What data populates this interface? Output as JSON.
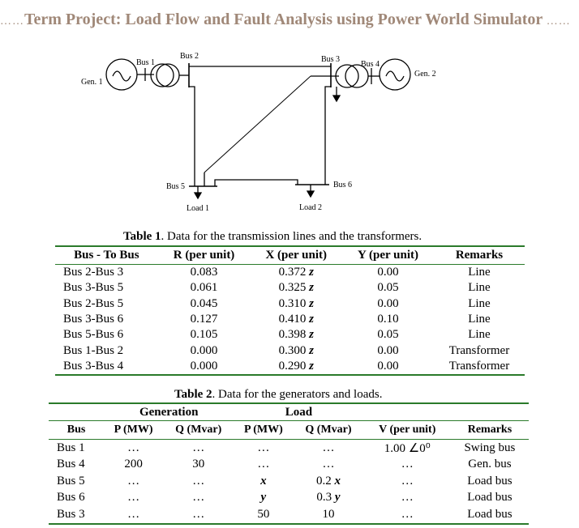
{
  "title": "Term Project: Load Flow and Fault Analysis using Power World Simulator",
  "title_color": "#a08878",
  "diagram": {
    "gen1": "Gen. 1",
    "gen2": "Gen. 2",
    "bus1": "Bus 1",
    "bus2": "Bus 2",
    "bus3": "Bus 3",
    "bus4": "Bus 4",
    "bus5": "Bus 5",
    "bus6": "Bus 6",
    "load1": "Load 1",
    "load2": "Load 2"
  },
  "table1": {
    "caption_bold": "Table 1",
    "caption": ". Data for the transmission lines and the transformers.",
    "headers": [
      "Bus - To Bus",
      "R (per unit)",
      "X (per unit)",
      "Y (per unit)",
      "Remarks"
    ],
    "rows": [
      [
        "Bus 2-Bus 3",
        "0.083",
        "0.372 z",
        "0.00",
        "Line"
      ],
      [
        "Bus 3-Bus 5",
        "0.061",
        "0.325 z",
        "0.05",
        "Line"
      ],
      [
        "Bus 2-Bus 5",
        "0.045",
        "0.310 z",
        "0.00",
        "Line"
      ],
      [
        "Bus 3-Bus 6",
        "0.127",
        "0.410 z",
        "0.10",
        "Line"
      ],
      [
        "Bus 5-Bus 6",
        "0.105",
        "0.398 z",
        "0.05",
        "Line"
      ],
      [
        "Bus 1-Bus 2",
        "0.000",
        "0.300 z",
        "0.00",
        "Transformer"
      ],
      [
        "Bus 3-Bus 4",
        "0.000",
        "0.290 z",
        "0.00",
        "Transformer"
      ]
    ]
  },
  "table2": {
    "caption_bold": "Table 2",
    "caption": ". Data for the generators and loads.",
    "groups": [
      "Generation",
      "Load"
    ],
    "headers": [
      "Bus",
      "P (MW)",
      "Q (Mvar)",
      "P (MW)",
      "Q (Mvar)",
      "V (per unit)",
      "Remarks"
    ],
    "rows": [
      [
        "Bus 1",
        "…",
        "…",
        "…",
        "…",
        "1.00 ∠0⁰",
        "Swing bus"
      ],
      [
        "Bus 4",
        "200",
        "30",
        "…",
        "…",
        "…",
        "Gen. bus"
      ],
      [
        "Bus 5",
        "…",
        "…",
        "x",
        "0.2 x",
        "…",
        "Load bus"
      ],
      [
        "Bus 6",
        "…",
        "…",
        "y",
        "0.3 y",
        "…",
        "Load bus"
      ],
      [
        "Bus 3",
        "…",
        "…",
        "50",
        "10",
        "…",
        "Load bus"
      ]
    ]
  },
  "line_color": "#2a7a2a"
}
